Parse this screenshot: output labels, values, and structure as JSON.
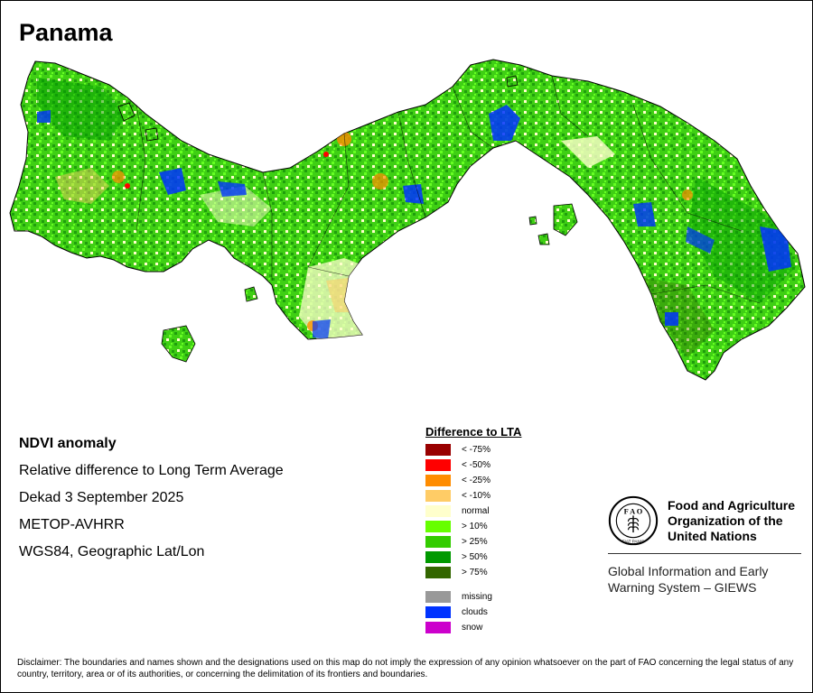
{
  "country": "Panama",
  "info": {
    "product": "NDVI anomaly",
    "description": "Relative difference to Long Term Average",
    "period": "Dekad 3 September 2025",
    "sensor": "METOP-AVHRR",
    "projection": "WGS84, Geographic Lat/Lon"
  },
  "legend": {
    "title": "Difference to LTA",
    "classes": [
      {
        "label": "< -75%",
        "color": "#990000"
      },
      {
        "label": "< -50%",
        "color": "#ff0000"
      },
      {
        "label": "< -25%",
        "color": "#ff8c00"
      },
      {
        "label": "< -10%",
        "color": "#ffcc66"
      },
      {
        "label": "normal",
        "color": "#ffffcc"
      },
      {
        "label": "> 10%",
        "color": "#66ff00"
      },
      {
        "label": "> 25%",
        "color": "#33cc00"
      },
      {
        "label": "> 50%",
        "color": "#009900"
      },
      {
        "label": "> 75%",
        "color": "#336600"
      }
    ],
    "other": [
      {
        "label": "missing",
        "color": "#999999"
      },
      {
        "label": "clouds",
        "color": "#0033ff"
      },
      {
        "label": "snow",
        "color": "#cc00cc"
      }
    ]
  },
  "organization": {
    "logo_icon": "fao-logo-icon",
    "name_lines": [
      "Food and Agriculture",
      "Organization of the",
      "United Nations"
    ],
    "system_lines": [
      "Global Information and Early",
      "Warning System – GIEWS"
    ]
  },
  "disclaimer": "Disclaimer: The boundaries and names shown and the designations used on this map do not imply the expression of any opinion whatsoever on the part of FAO concerning the legal status of any country, territory, area or of its authorities, or concerning the delimitation of its frontiers and boundaries."
}
